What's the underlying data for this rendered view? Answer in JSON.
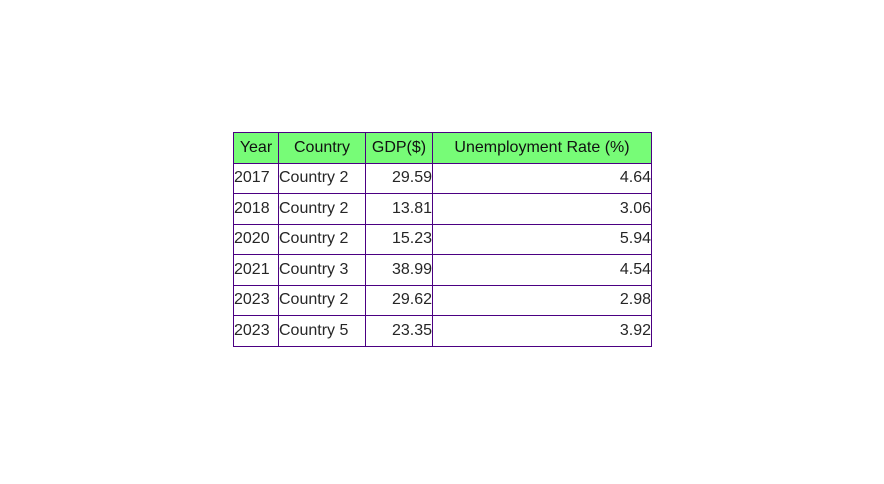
{
  "chart_data": {
    "type": "table",
    "columns": [
      "Year",
      "Country",
      "GDP($)",
      "Unemployment Rate (%)"
    ],
    "rows": [
      [
        "2017",
        "Country 2",
        "29.59",
        "4.64"
      ],
      [
        "2018",
        "Country 2",
        "13.81",
        "3.06"
      ],
      [
        "2020",
        "Country 2",
        "15.23",
        "5.94"
      ],
      [
        "2021",
        "Country 3",
        "38.99",
        "4.54"
      ],
      [
        "2023",
        "Country 2",
        "29.62",
        "2.98"
      ],
      [
        "2023",
        "Country 5",
        "23.35",
        "3.92"
      ]
    ],
    "colors": {
      "header_bg": "#77fc77",
      "border": "#4b0082"
    }
  }
}
